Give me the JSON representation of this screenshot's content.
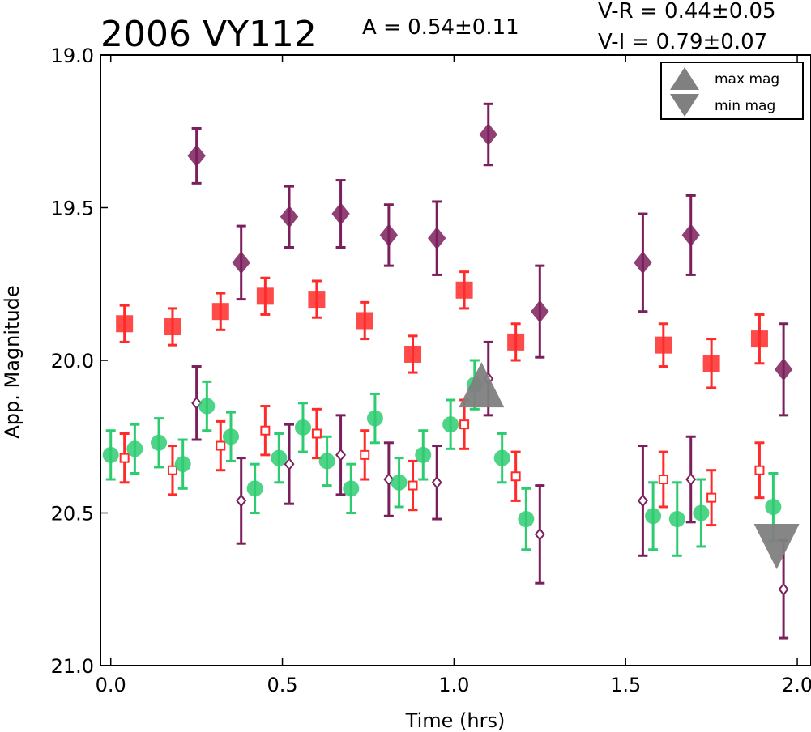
{
  "chart_data": {
    "type": "scatter",
    "title": "2006 VY112",
    "annotations": {
      "amplitude": "A  = 0.54±0.11",
      "color_vr": "V-R = 0.44±0.05",
      "color_vi": "V-I  = 0.79±0.07"
    },
    "xlabel": "Time (hrs)",
    "ylabel": "App. Magnitude",
    "xlim": [
      -0.03,
      2.04
    ],
    "ylim": [
      21.0,
      19.0
    ],
    "y_inverted": true,
    "x_ticks": [
      "0.0",
      "0.5",
      "1.0",
      "1.5",
      "2.0"
    ],
    "x_tick_values": [
      0.0,
      0.5,
      1.0,
      1.5,
      2.0
    ],
    "y_ticks": [
      "19.0",
      "19.5",
      "20.0",
      "20.5",
      "21.0"
    ],
    "y_tick_values": [
      19.0,
      19.5,
      20.0,
      20.5,
      21.0
    ],
    "grid": false,
    "legend": {
      "placement": "top-right",
      "entries": [
        {
          "label": "max mag",
          "marker": "triangle-up",
          "color": "#808080"
        },
        {
          "label": "min mag",
          "marker": "triangle-down",
          "color": "#808080"
        }
      ]
    },
    "series": [
      {
        "key": "filled-diamond",
        "marker": "diamond",
        "filled": true,
        "color": "#7b1f5c",
        "points": [
          {
            "x": 0.25,
            "y": 19.33,
            "err": 0.09
          },
          {
            "x": 0.38,
            "y": 19.68,
            "err": 0.12
          },
          {
            "x": 0.52,
            "y": 19.53,
            "err": 0.1
          },
          {
            "x": 0.67,
            "y": 19.52,
            "err": 0.11
          },
          {
            "x": 0.81,
            "y": 19.59,
            "err": 0.1
          },
          {
            "x": 0.95,
            "y": 19.6,
            "err": 0.12
          },
          {
            "x": 1.1,
            "y": 19.26,
            "err": 0.1
          },
          {
            "x": 1.25,
            "y": 19.84,
            "err": 0.15
          },
          {
            "x": 1.55,
            "y": 19.68,
            "err": 0.16
          },
          {
            "x": 1.69,
            "y": 19.59,
            "err": 0.13
          },
          {
            "x": 1.96,
            "y": 20.03,
            "err": 0.15
          }
        ]
      },
      {
        "key": "filled-square",
        "marker": "square",
        "filled": true,
        "color": "#ff2a2a",
        "points": [
          {
            "x": 0.04,
            "y": 19.88,
            "err": 0.06
          },
          {
            "x": 0.18,
            "y": 19.89,
            "err": 0.06
          },
          {
            "x": 0.32,
            "y": 19.84,
            "err": 0.06
          },
          {
            "x": 0.45,
            "y": 19.79,
            "err": 0.06
          },
          {
            "x": 0.6,
            "y": 19.8,
            "err": 0.06
          },
          {
            "x": 0.74,
            "y": 19.87,
            "err": 0.06
          },
          {
            "x": 0.88,
            "y": 19.98,
            "err": 0.06
          },
          {
            "x": 1.03,
            "y": 19.77,
            "err": 0.06
          },
          {
            "x": 1.18,
            "y": 19.94,
            "err": 0.06
          },
          {
            "x": 1.61,
            "y": 19.95,
            "err": 0.07
          },
          {
            "x": 1.75,
            "y": 20.01,
            "err": 0.08
          },
          {
            "x": 1.89,
            "y": 19.93,
            "err": 0.08
          }
        ]
      },
      {
        "key": "open-square",
        "marker": "square",
        "filled": false,
        "color": "#ff2a2a",
        "points": [
          {
            "x": 0.04,
            "y": 20.32,
            "err": 0.08
          },
          {
            "x": 0.18,
            "y": 20.36,
            "err": 0.08
          },
          {
            "x": 0.32,
            "y": 20.28,
            "err": 0.08
          },
          {
            "x": 0.45,
            "y": 20.23,
            "err": 0.08
          },
          {
            "x": 0.6,
            "y": 20.24,
            "err": 0.08
          },
          {
            "x": 0.74,
            "y": 20.31,
            "err": 0.08
          },
          {
            "x": 0.88,
            "y": 20.41,
            "err": 0.08
          },
          {
            "x": 1.03,
            "y": 20.21,
            "err": 0.08
          },
          {
            "x": 1.18,
            "y": 20.38,
            "err": 0.08
          },
          {
            "x": 1.61,
            "y": 20.39,
            "err": 0.09
          },
          {
            "x": 1.75,
            "y": 20.45,
            "err": 0.09
          },
          {
            "x": 1.89,
            "y": 20.36,
            "err": 0.09
          }
        ]
      },
      {
        "key": "open-diamond",
        "marker": "diamond",
        "filled": false,
        "color": "#7b1f5c",
        "points": [
          {
            "x": 0.25,
            "y": 20.14,
            "err": 0.12
          },
          {
            "x": 0.38,
            "y": 20.46,
            "err": 0.14
          },
          {
            "x": 0.52,
            "y": 20.34,
            "err": 0.13
          },
          {
            "x": 0.67,
            "y": 20.31,
            "err": 0.13
          },
          {
            "x": 0.81,
            "y": 20.39,
            "err": 0.12
          },
          {
            "x": 0.95,
            "y": 20.4,
            "err": 0.12
          },
          {
            "x": 1.1,
            "y": 20.06,
            "err": 0.12
          },
          {
            "x": 1.25,
            "y": 20.57,
            "err": 0.16
          },
          {
            "x": 1.55,
            "y": 20.46,
            "err": 0.18
          },
          {
            "x": 1.69,
            "y": 20.39,
            "err": 0.14
          },
          {
            "x": 1.96,
            "y": 20.75,
            "err": 0.16
          }
        ]
      },
      {
        "key": "circle",
        "marker": "circle",
        "filled": true,
        "color": "#2ecc71",
        "points": [
          {
            "x": 0.0,
            "y": 20.31,
            "err": 0.08
          },
          {
            "x": 0.07,
            "y": 20.29,
            "err": 0.08
          },
          {
            "x": 0.14,
            "y": 20.27,
            "err": 0.08
          },
          {
            "x": 0.21,
            "y": 20.34,
            "err": 0.08
          },
          {
            "x": 0.28,
            "y": 20.15,
            "err": 0.08
          },
          {
            "x": 0.35,
            "y": 20.25,
            "err": 0.08
          },
          {
            "x": 0.42,
            "y": 20.42,
            "err": 0.08
          },
          {
            "x": 0.49,
            "y": 20.32,
            "err": 0.08
          },
          {
            "x": 0.56,
            "y": 20.22,
            "err": 0.08
          },
          {
            "x": 0.63,
            "y": 20.33,
            "err": 0.08
          },
          {
            "x": 0.7,
            "y": 20.42,
            "err": 0.08
          },
          {
            "x": 0.77,
            "y": 20.19,
            "err": 0.08
          },
          {
            "x": 0.84,
            "y": 20.4,
            "err": 0.08
          },
          {
            "x": 0.91,
            "y": 20.31,
            "err": 0.08
          },
          {
            "x": 0.99,
            "y": 20.21,
            "err": 0.08
          },
          {
            "x": 1.06,
            "y": 20.08,
            "err": 0.08
          },
          {
            "x": 1.14,
            "y": 20.32,
            "err": 0.08
          },
          {
            "x": 1.21,
            "y": 20.52,
            "err": 0.1
          },
          {
            "x": 1.58,
            "y": 20.51,
            "err": 0.11
          },
          {
            "x": 1.65,
            "y": 20.52,
            "err": 0.12
          },
          {
            "x": 1.72,
            "y": 20.5,
            "err": 0.11
          },
          {
            "x": 1.93,
            "y": 20.48,
            "err": 0.11
          }
        ]
      }
    ],
    "extrema_markers": [
      {
        "label": "max mag",
        "marker": "triangle-up",
        "x": 1.08,
        "y": 20.08,
        "color": "#808080"
      },
      {
        "label": "min mag",
        "marker": "triangle-down",
        "x": 1.94,
        "y": 20.61,
        "color": "#808080"
      }
    ]
  }
}
